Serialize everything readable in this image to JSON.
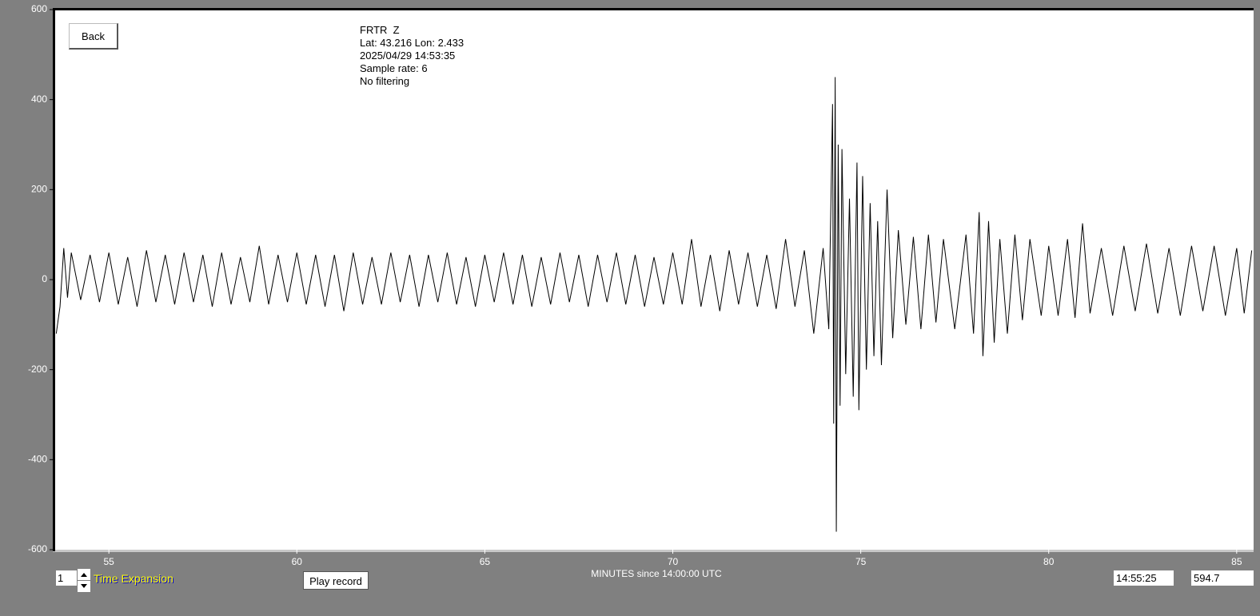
{
  "chart_data": {
    "type": "line",
    "x_label": "MINUTES since 14:00:00 UTC",
    "x": [
      53.6,
      53.7,
      53.8,
      53.9,
      54.0,
      54.25,
      54.5,
      54.75,
      55,
      55.25,
      55.5,
      55.75,
      56,
      56.25,
      56.5,
      56.75,
      57,
      57.25,
      57.5,
      57.75,
      58,
      58.25,
      58.5,
      58.75,
      59,
      59.25,
      59.5,
      59.75,
      60,
      60.25,
      60.5,
      60.75,
      61,
      61.25,
      61.5,
      61.75,
      62,
      62.25,
      62.5,
      62.75,
      63,
      63.25,
      63.5,
      63.75,
      64,
      64.25,
      64.5,
      64.75,
      65,
      65.25,
      65.5,
      65.75,
      66,
      66.25,
      66.5,
      66.75,
      67,
      67.25,
      67.5,
      67.75,
      68,
      68.25,
      68.5,
      68.75,
      69,
      69.25,
      69.5,
      69.75,
      70,
      70.25,
      70.5,
      70.75,
      71,
      71.25,
      71.5,
      71.75,
      72,
      72.25,
      72.5,
      72.75,
      73,
      73.25,
      73.5,
      73.75,
      74,
      74.15,
      74.25,
      74.28,
      74.32,
      74.35,
      74.4,
      74.45,
      74.5,
      74.6,
      74.7,
      74.8,
      74.9,
      74.95,
      75.05,
      75.15,
      75.25,
      75.35,
      75.45,
      75.55,
      75.7,
      75.85,
      76,
      76.2,
      76.4,
      76.6,
      76.8,
      77,
      77.2,
      77.5,
      77.8,
      78,
      78.15,
      78.25,
      78.4,
      78.55,
      78.7,
      78.9,
      79.1,
      79.3,
      79.5,
      79.8,
      80,
      80.25,
      80.5,
      80.7,
      80.9,
      81.1,
      81.4,
      81.7,
      82,
      82.3,
      82.6,
      82.9,
      83.2,
      83.5,
      83.8,
      84.1,
      84.4,
      84.7,
      85,
      85.2,
      85.4
    ],
    "series": [
      {
        "color": "#000000",
        "values": [
          -120,
          -60,
          70,
          -40,
          60,
          -45,
          55,
          -50,
          60,
          -55,
          50,
          -60,
          65,
          -50,
          55,
          -55,
          60,
          -50,
          55,
          -60,
          60,
          -55,
          50,
          -50,
          75,
          -55,
          55,
          -50,
          60,
          -55,
          55,
          -60,
          55,
          -70,
          60,
          -55,
          50,
          -55,
          60,
          -50,
          55,
          -60,
          55,
          -50,
          60,
          -55,
          50,
          -60,
          55,
          -50,
          60,
          -55,
          55,
          -60,
          50,
          -55,
          60,
          -50,
          55,
          -60,
          55,
          -50,
          60,
          -55,
          55,
          -60,
          50,
          -55,
          60,
          -55,
          90,
          -60,
          55,
          -70,
          65,
          -55,
          60,
          -60,
          55,
          -65,
          90,
          -60,
          65,
          -120,
          70,
          -110,
          390,
          -320,
          450,
          -560,
          300,
          -280,
          290,
          -210,
          180,
          -260,
          260,
          -290,
          230,
          -200,
          170,
          -170,
          130,
          -190,
          200,
          -130,
          110,
          -100,
          95,
          -110,
          100,
          -95,
          90,
          -110,
          100,
          -120,
          150,
          -170,
          130,
          -140,
          90,
          -120,
          100,
          -90,
          90,
          -80,
          75,
          -80,
          90,
          -85,
          125,
          -75,
          70,
          -80,
          75,
          -70,
          80,
          -75,
          70,
          -80,
          75,
          -70,
          75,
          -80,
          70,
          -75,
          65
        ]
      }
    ],
    "xlim": [
      53.55,
      85.45
    ],
    "xticks": [
      55,
      60,
      65,
      70,
      75,
      80,
      85
    ],
    "ylim": [
      -600,
      600
    ],
    "yticks": [
      -600,
      -400,
      -200,
      0,
      200,
      400,
      600
    ]
  },
  "info": {
    "station": "FRTR  Z",
    "location": "Lat: 43.216 Lon: 2.433",
    "datetime": "2025/04/29 14:53:35",
    "sample_rate": "Sample rate: 6",
    "filter": "No filtering"
  },
  "controls": {
    "back": "Back",
    "expansion_value": "1",
    "expansion_label": "Time Expansion",
    "play": "Play record",
    "time_display": "14:55:25",
    "value_display": "594.7"
  }
}
